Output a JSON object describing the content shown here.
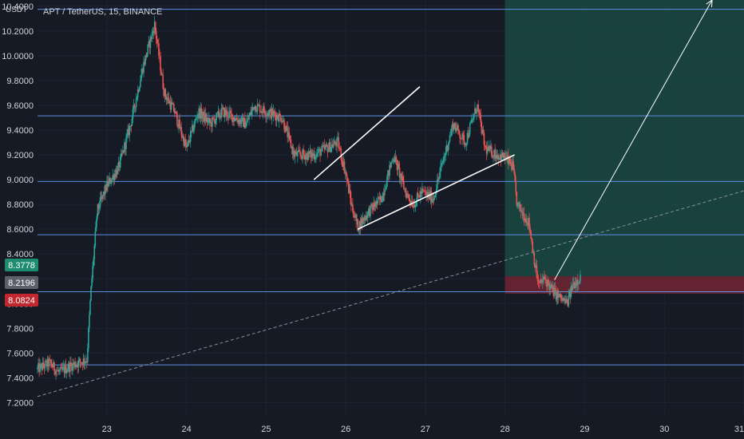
{
  "header": {
    "currency": "USDT",
    "title": "APT / TetherUS, 15, BINANCE"
  },
  "price_labels": [
    {
      "text": "8.3778",
      "bg": "#1e8c6e"
    },
    {
      "text": "8.2196",
      "bg": "#5d606b"
    },
    {
      "text": "8.0824",
      "bg": "#c2262e"
    }
  ],
  "colors": {
    "background": "#161a25",
    "up": "#26a69a",
    "down": "#ef5350",
    "hline": "#5b8fde",
    "profit_zone": "#1a4a44",
    "stop_zone": "#6b2533",
    "drawing": "#ffffff"
  },
  "chart_data": {
    "type": "candlestick",
    "symbol": "APT / TetherUS",
    "interval": "15",
    "exchange": "BINANCE",
    "x_ticks": [
      "23",
      "24",
      "25",
      "26",
      "27",
      "28",
      "29",
      "30",
      "31"
    ],
    "y_ticks": [
      "10.4000",
      "10.2000",
      "10.0000",
      "9.8000",
      "9.6000",
      "9.4000",
      "9.2000",
      "9.0000",
      "8.8000",
      "8.6000",
      "8.4000",
      "8.2000",
      "8.0000",
      "7.8000",
      "7.6000",
      "7.4000",
      "7.2000"
    ],
    "ylim": [
      7.1,
      10.45
    ],
    "xlim": [
      22.13,
      31.0
    ],
    "horizontal_levels": [
      10.375,
      9.515,
      8.985,
      8.555,
      8.095,
      7.505
    ],
    "price_path": [
      [
        22.13,
        7.47
      ],
      [
        22.28,
        7.52
      ],
      [
        22.4,
        7.44
      ],
      [
        22.55,
        7.5
      ],
      [
        22.75,
        7.55
      ],
      [
        22.8,
        8.1
      ],
      [
        22.88,
        8.75
      ],
      [
        23.0,
        8.95
      ],
      [
        23.15,
        9.1
      ],
      [
        23.3,
        9.45
      ],
      [
        23.45,
        9.9
      ],
      [
        23.6,
        10.25
      ],
      [
        23.72,
        9.7
      ],
      [
        23.85,
        9.55
      ],
      [
        24.0,
        9.25
      ],
      [
        24.15,
        9.55
      ],
      [
        24.3,
        9.45
      ],
      [
        24.45,
        9.55
      ],
      [
        24.6,
        9.5
      ],
      [
        24.75,
        9.45
      ],
      [
        24.85,
        9.6
      ],
      [
        25.0,
        9.55
      ],
      [
        25.2,
        9.5
      ],
      [
        25.35,
        9.2
      ],
      [
        25.6,
        9.2
      ],
      [
        25.9,
        9.3
      ],
      [
        26.0,
        9.05
      ],
      [
        26.07,
        8.8
      ],
      [
        26.15,
        8.62
      ],
      [
        26.3,
        8.75
      ],
      [
        26.45,
        8.85
      ],
      [
        26.6,
        9.2
      ],
      [
        26.75,
        8.9
      ],
      [
        26.85,
        8.8
      ],
      [
        26.95,
        8.9
      ],
      [
        27.1,
        8.85
      ],
      [
        27.22,
        9.15
      ],
      [
        27.35,
        9.45
      ],
      [
        27.5,
        9.3
      ],
      [
        27.65,
        9.6
      ],
      [
        27.75,
        9.25
      ],
      [
        27.9,
        9.2
      ],
      [
        28.0,
        9.18
      ],
      [
        28.1,
        9.1
      ],
      [
        28.15,
        8.8
      ],
      [
        28.3,
        8.65
      ],
      [
        28.38,
        8.3
      ],
      [
        28.42,
        8.15
      ],
      [
        28.5,
        8.2
      ],
      [
        28.6,
        8.1
      ],
      [
        28.68,
        8.05
      ],
      [
        28.78,
        8.0
      ],
      [
        28.85,
        8.15
      ],
      [
        28.95,
        8.22
      ]
    ],
    "channel_lines": [
      {
        "x1": 25.6,
        "y1": 9.0,
        "x2": 26.93,
        "y2": 9.75
      },
      {
        "x1": 26.15,
        "y1": 8.6,
        "x2": 28.12,
        "y2": 9.2
      }
    ],
    "trend_line": {
      "x1": 22.13,
      "y1": 7.25,
      "x2": 31.0,
      "y2": 8.91,
      "style": "dashed"
    },
    "target_arrow": {
      "x1": 28.62,
      "y1": 8.19,
      "x2": 30.6,
      "y2": 10.45
    },
    "position": {
      "entry": 8.22,
      "stop": 8.08,
      "target": 10.45,
      "x_start": 28.0,
      "x_end": 31.0
    }
  }
}
